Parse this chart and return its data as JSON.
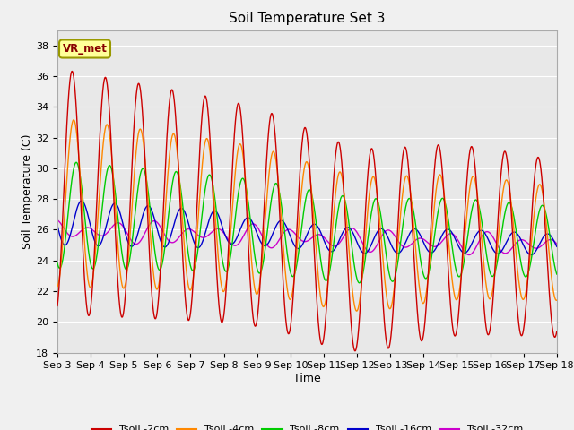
{
  "title": "Soil Temperature Set 3",
  "xlabel": "Time",
  "ylabel": "Soil Temperature (C)",
  "ylim": [
    18,
    39
  ],
  "xlim": [
    0,
    15
  ],
  "xtick_labels": [
    "Sep 3",
    "Sep 4",
    "Sep 5",
    "Sep 6",
    "Sep 7",
    "Sep 8",
    "Sep 9",
    "Sep 10",
    "Sep 11",
    "Sep 12",
    "Sep 13",
    "Sep 14",
    "Sep 15",
    "Sep 16",
    "Sep 17",
    "Sep 18"
  ],
  "colors": {
    "Tsoil -2cm": "#cc0000",
    "Tsoil -4cm": "#ff8800",
    "Tsoil -8cm": "#00cc00",
    "Tsoil -16cm": "#0000cc",
    "Tsoil -32cm": "#cc00cc"
  },
  "annotation_text": "VR_met",
  "annotation_box_color": "#ffff99",
  "annotation_box_edge": "#999900",
  "annotation_text_color": "#880000",
  "background_color": "#e8e8e8",
  "fig_background": "#f0f0f0",
  "grid_color": "#ffffff",
  "title_fontsize": 11,
  "axis_fontsize": 9,
  "tick_fontsize": 8
}
